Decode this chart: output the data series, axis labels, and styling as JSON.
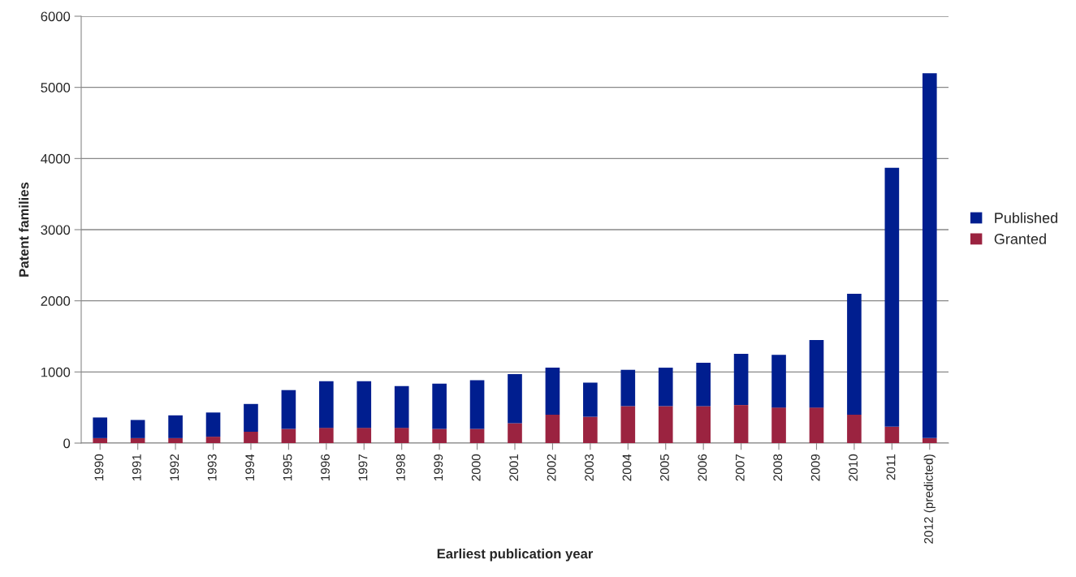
{
  "chart_data": {
    "type": "bar",
    "stacked": true,
    "xlabel": "Earliest publication year",
    "ylabel": "Patent families",
    "categories": [
      "1990",
      "1991",
      "1992",
      "1993",
      "1994",
      "1995",
      "1996",
      "1997",
      "1998",
      "1999",
      "2000",
      "2001",
      "2002",
      "2003",
      "2004",
      "2005",
      "2006",
      "2007",
      "2008",
      "2009",
      "2010",
      "2011",
      "2012 (predicted)"
    ],
    "series": [
      {
        "name": "Granted",
        "color": "#9b2340",
        "values": [
          70,
          70,
          70,
          90,
          160,
          200,
          215,
          215,
          215,
          200,
          200,
          280,
          400,
          370,
          520,
          520,
          520,
          535,
          500,
          500,
          400,
          230,
          70
        ]
      },
      {
        "name": "Published",
        "color": "#001e8f",
        "values": [
          290,
          255,
          320,
          340,
          390,
          545,
          655,
          655,
          585,
          635,
          685,
          690,
          660,
          480,
          510,
          540,
          610,
          720,
          740,
          950,
          1700,
          3640,
          5130
        ]
      }
    ],
    "ylim": [
      0,
      6000
    ],
    "yticks": [
      0,
      1000,
      2000,
      3000,
      4000,
      5000,
      6000
    ],
    "grid": "y",
    "legend": "right"
  }
}
